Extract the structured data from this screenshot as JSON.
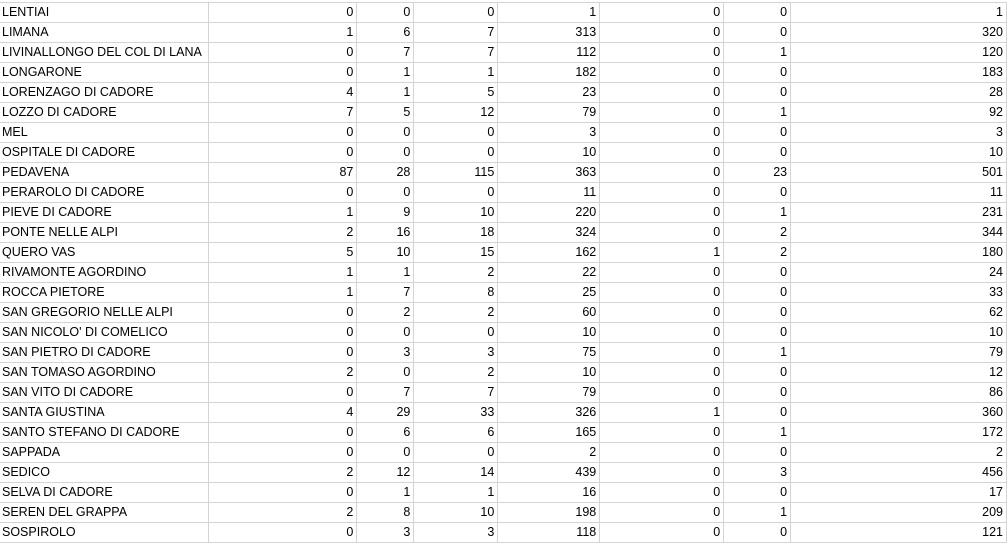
{
  "rows": [
    [
      "LENTIAI",
      "0",
      "0",
      "0",
      "1",
      "0",
      "0",
      "1"
    ],
    [
      "LIMANA",
      "1",
      "6",
      "7",
      "313",
      "0",
      "0",
      "320"
    ],
    [
      "LIVINALLONGO DEL COL DI LANA",
      "0",
      "7",
      "7",
      "112",
      "0",
      "1",
      "120"
    ],
    [
      "LONGARONE",
      "0",
      "1",
      "1",
      "182",
      "0",
      "0",
      "183"
    ],
    [
      "LORENZAGO DI CADORE",
      "4",
      "1",
      "5",
      "23",
      "0",
      "0",
      "28"
    ],
    [
      "LOZZO DI CADORE",
      "7",
      "5",
      "12",
      "79",
      "0",
      "1",
      "92"
    ],
    [
      "MEL",
      "0",
      "0",
      "0",
      "3",
      "0",
      "0",
      "3"
    ],
    [
      "OSPITALE DI CADORE",
      "0",
      "0",
      "0",
      "10",
      "0",
      "0",
      "10"
    ],
    [
      "PEDAVENA",
      "87",
      "28",
      "115",
      "363",
      "0",
      "23",
      "501"
    ],
    [
      "PERAROLO DI CADORE",
      "0",
      "0",
      "0",
      "11",
      "0",
      "0",
      "11"
    ],
    [
      "PIEVE DI CADORE",
      "1",
      "9",
      "10",
      "220",
      "0",
      "1",
      "231"
    ],
    [
      "PONTE NELLE ALPI",
      "2",
      "16",
      "18",
      "324",
      "0",
      "2",
      "344"
    ],
    [
      "QUERO VAS",
      "5",
      "10",
      "15",
      "162",
      "1",
      "2",
      "180"
    ],
    [
      "RIVAMONTE AGORDINO",
      "1",
      "1",
      "2",
      "22",
      "0",
      "0",
      "24"
    ],
    [
      "ROCCA PIETORE",
      "1",
      "7",
      "8",
      "25",
      "0",
      "0",
      "33"
    ],
    [
      "SAN GREGORIO NELLE ALPI",
      "0",
      "2",
      "2",
      "60",
      "0",
      "0",
      "62"
    ],
    [
      "SAN NICOLO' DI COMELICO",
      "0",
      "0",
      "0",
      "10",
      "0",
      "0",
      "10"
    ],
    [
      "SAN PIETRO DI CADORE",
      "0",
      "3",
      "3",
      "75",
      "0",
      "1",
      "79"
    ],
    [
      "SAN TOMASO AGORDINO",
      "2",
      "0",
      "2",
      "10",
      "0",
      "0",
      "12"
    ],
    [
      "SAN VITO DI CADORE",
      "0",
      "7",
      "7",
      "79",
      "0",
      "0",
      "86"
    ],
    [
      "SANTA GIUSTINA",
      "4",
      "29",
      "33",
      "326",
      "1",
      "0",
      "360"
    ],
    [
      "SANTO STEFANO DI CADORE",
      "0",
      "6",
      "6",
      "165",
      "0",
      "1",
      "172"
    ],
    [
      "SAPPADA",
      "0",
      "0",
      "0",
      "2",
      "0",
      "0",
      "2"
    ],
    [
      "SEDICO",
      "2",
      "12",
      "14",
      "439",
      "0",
      "3",
      "456"
    ],
    [
      "SELVA DI CADORE",
      "0",
      "1",
      "1",
      "16",
      "0",
      "0",
      "17"
    ],
    [
      "SEREN DEL GRAPPA",
      "2",
      "8",
      "10",
      "198",
      "0",
      "1",
      "209"
    ],
    [
      "SOSPIROLO",
      "0",
      "3",
      "3",
      "118",
      "0",
      "0",
      "121"
    ]
  ]
}
